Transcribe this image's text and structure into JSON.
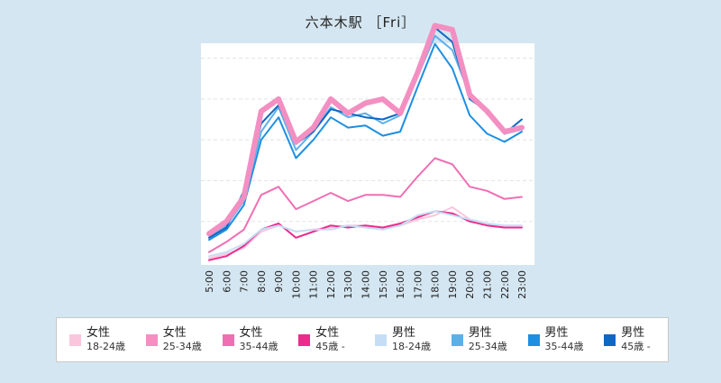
{
  "chart_data": {
    "type": "line",
    "title": "六本木駅 ［Fri］",
    "xlabel": "",
    "ylabel": "",
    "ylim": [
      0,
      106
    ],
    "grid": true,
    "legend_position": "bottom",
    "categories": [
      "5:00",
      "6:00",
      "7:00",
      "8:00",
      "9:00",
      "10:00",
      "11:00",
      "12:00",
      "13:00",
      "14:00",
      "15:00",
      "16:00",
      "17:00",
      "18:00",
      "19:00",
      "20:00",
      "21:00",
      "22:00",
      "23:00"
    ],
    "series": [
      {
        "gender": "女性",
        "age": "18-24歳",
        "color": "#f9c6dd",
        "values": [
          2,
          4,
          7,
          15,
          18,
          15,
          16,
          17,
          18,
          18,
          17,
          18,
          21,
          23,
          27,
          21,
          19,
          17,
          17
        ]
      },
      {
        "gender": "女性",
        "age": "25-34歳",
        "color": "#f48fc2",
        "values": [
          14,
          20,
          32,
          74,
          80,
          59,
          66,
          80,
          73,
          78,
          80,
          73,
          93,
          116,
          114,
          82,
          74,
          64,
          66
        ]
      },
      {
        "gender": "女性",
        "age": "35-44歳",
        "color": "#f06fb2",
        "values": [
          5,
          10,
          16,
          33,
          37,
          26,
          30,
          34,
          30,
          33,
          33,
          32,
          42,
          51,
          48,
          37,
          35,
          31,
          32
        ]
      },
      {
        "gender": "女性",
        "age": "45歳 -",
        "color": "#ec2c8d",
        "values": [
          1,
          3,
          8,
          16,
          19,
          12,
          15,
          18,
          17,
          18,
          17,
          19,
          22,
          25,
          24,
          20,
          18,
          17,
          17
        ]
      },
      {
        "gender": "男性",
        "age": "18-24歳",
        "color": "#c5def5",
        "values": [
          3,
          5,
          9,
          16,
          18,
          15,
          16,
          16,
          18,
          17,
          16,
          18,
          23,
          25,
          23,
          21,
          19,
          18,
          18
        ]
      },
      {
        "gender": "男性",
        "age": "25-34歳",
        "color": "#5cb0ea",
        "values": [
          13,
          18,
          30,
          64,
          76,
          55,
          64,
          76,
          71,
          73,
          68,
          72,
          91,
          111,
          104,
          82,
          73,
          63,
          65
        ]
      },
      {
        "gender": "男性",
        "age": "35-44歳",
        "color": "#1c8fe2",
        "values": [
          11,
          16,
          28,
          60,
          71,
          51,
          60,
          71,
          66,
          67,
          62,
          64,
          86,
          107,
          95,
          72,
          63,
          59,
          64
        ]
      },
      {
        "gender": "男性",
        "age": "45歳 -",
        "color": "#0e67c4",
        "values": [
          12,
          17,
          35,
          68,
          77,
          58,
          64,
          75,
          73,
          71,
          70,
          73,
          95,
          115,
          108,
          80,
          74,
          63,
          70
        ]
      }
    ]
  }
}
